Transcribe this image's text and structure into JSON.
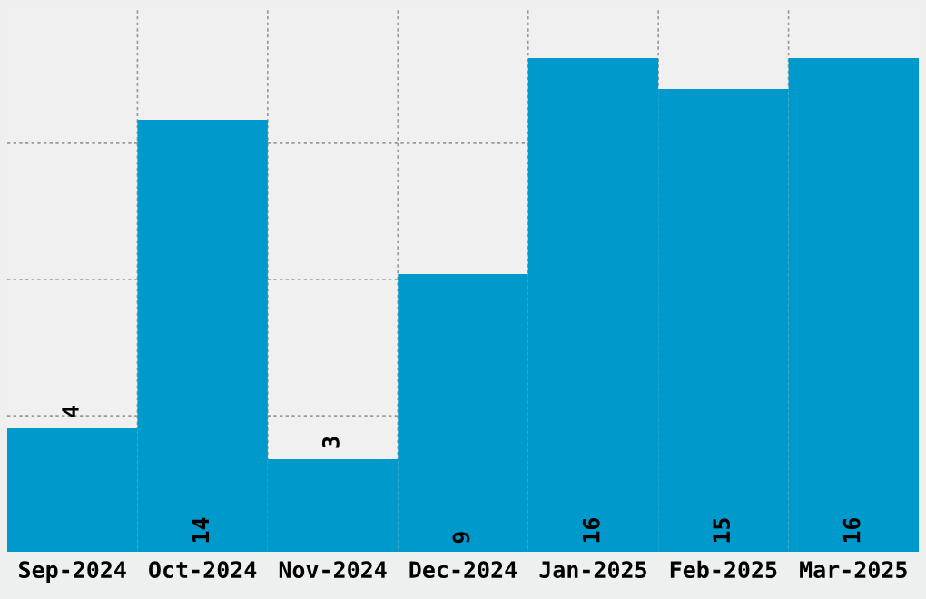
{
  "chart_data": {
    "type": "bar",
    "categories": [
      "Sep-2024",
      "Oct-2024",
      "Nov-2024",
      "Dec-2024",
      "Jan-2025",
      "Feb-2025",
      "Mar-2025"
    ],
    "values": [
      4,
      14,
      3,
      9,
      16,
      15,
      16
    ],
    "color": "#0099cc",
    "ylim": [
      0,
      17.65
    ],
    "yticks": [
      {
        "value": 4.41,
        "label": null
      },
      {
        "value": 8.82,
        "label": null
      },
      {
        "value": 13.24,
        "label": null
      }
    ],
    "tick_labels": "x",
    "grid": true,
    "data_labels": true
  }
}
